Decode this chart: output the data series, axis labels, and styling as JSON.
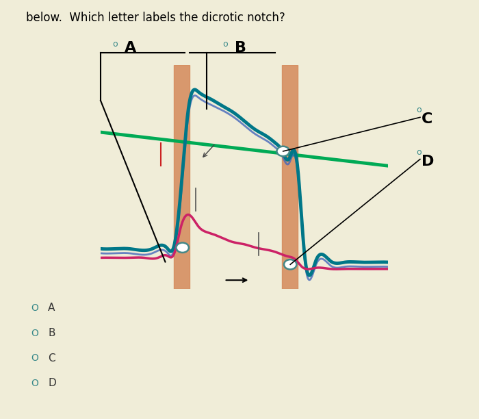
{
  "title": "below.  Which letter labels the dicrotic notch?",
  "title_fontsize": 12,
  "bg_outer": "#f0edd8",
  "bg_chart_outer": "#e8d8a0",
  "bg_plot": "#aadde8",
  "orange_band_color": "#d4895a",
  "orange_band_alpha": 0.85,
  "answer_choices": [
    "A",
    "B",
    "C",
    "D"
  ],
  "choice_color": "#3a8a8a",
  "choice_fontsize": 11,
  "label_fontsize": 16,
  "label_color": "#111111",
  "circle_color": "#3a8a8a",
  "green_line_color": "#00aa55",
  "teal_line_color": "#007788",
  "pink_line_color": "#cc2266",
  "blue_line_color": "#4466bb",
  "white_circle_ec": "#448888"
}
